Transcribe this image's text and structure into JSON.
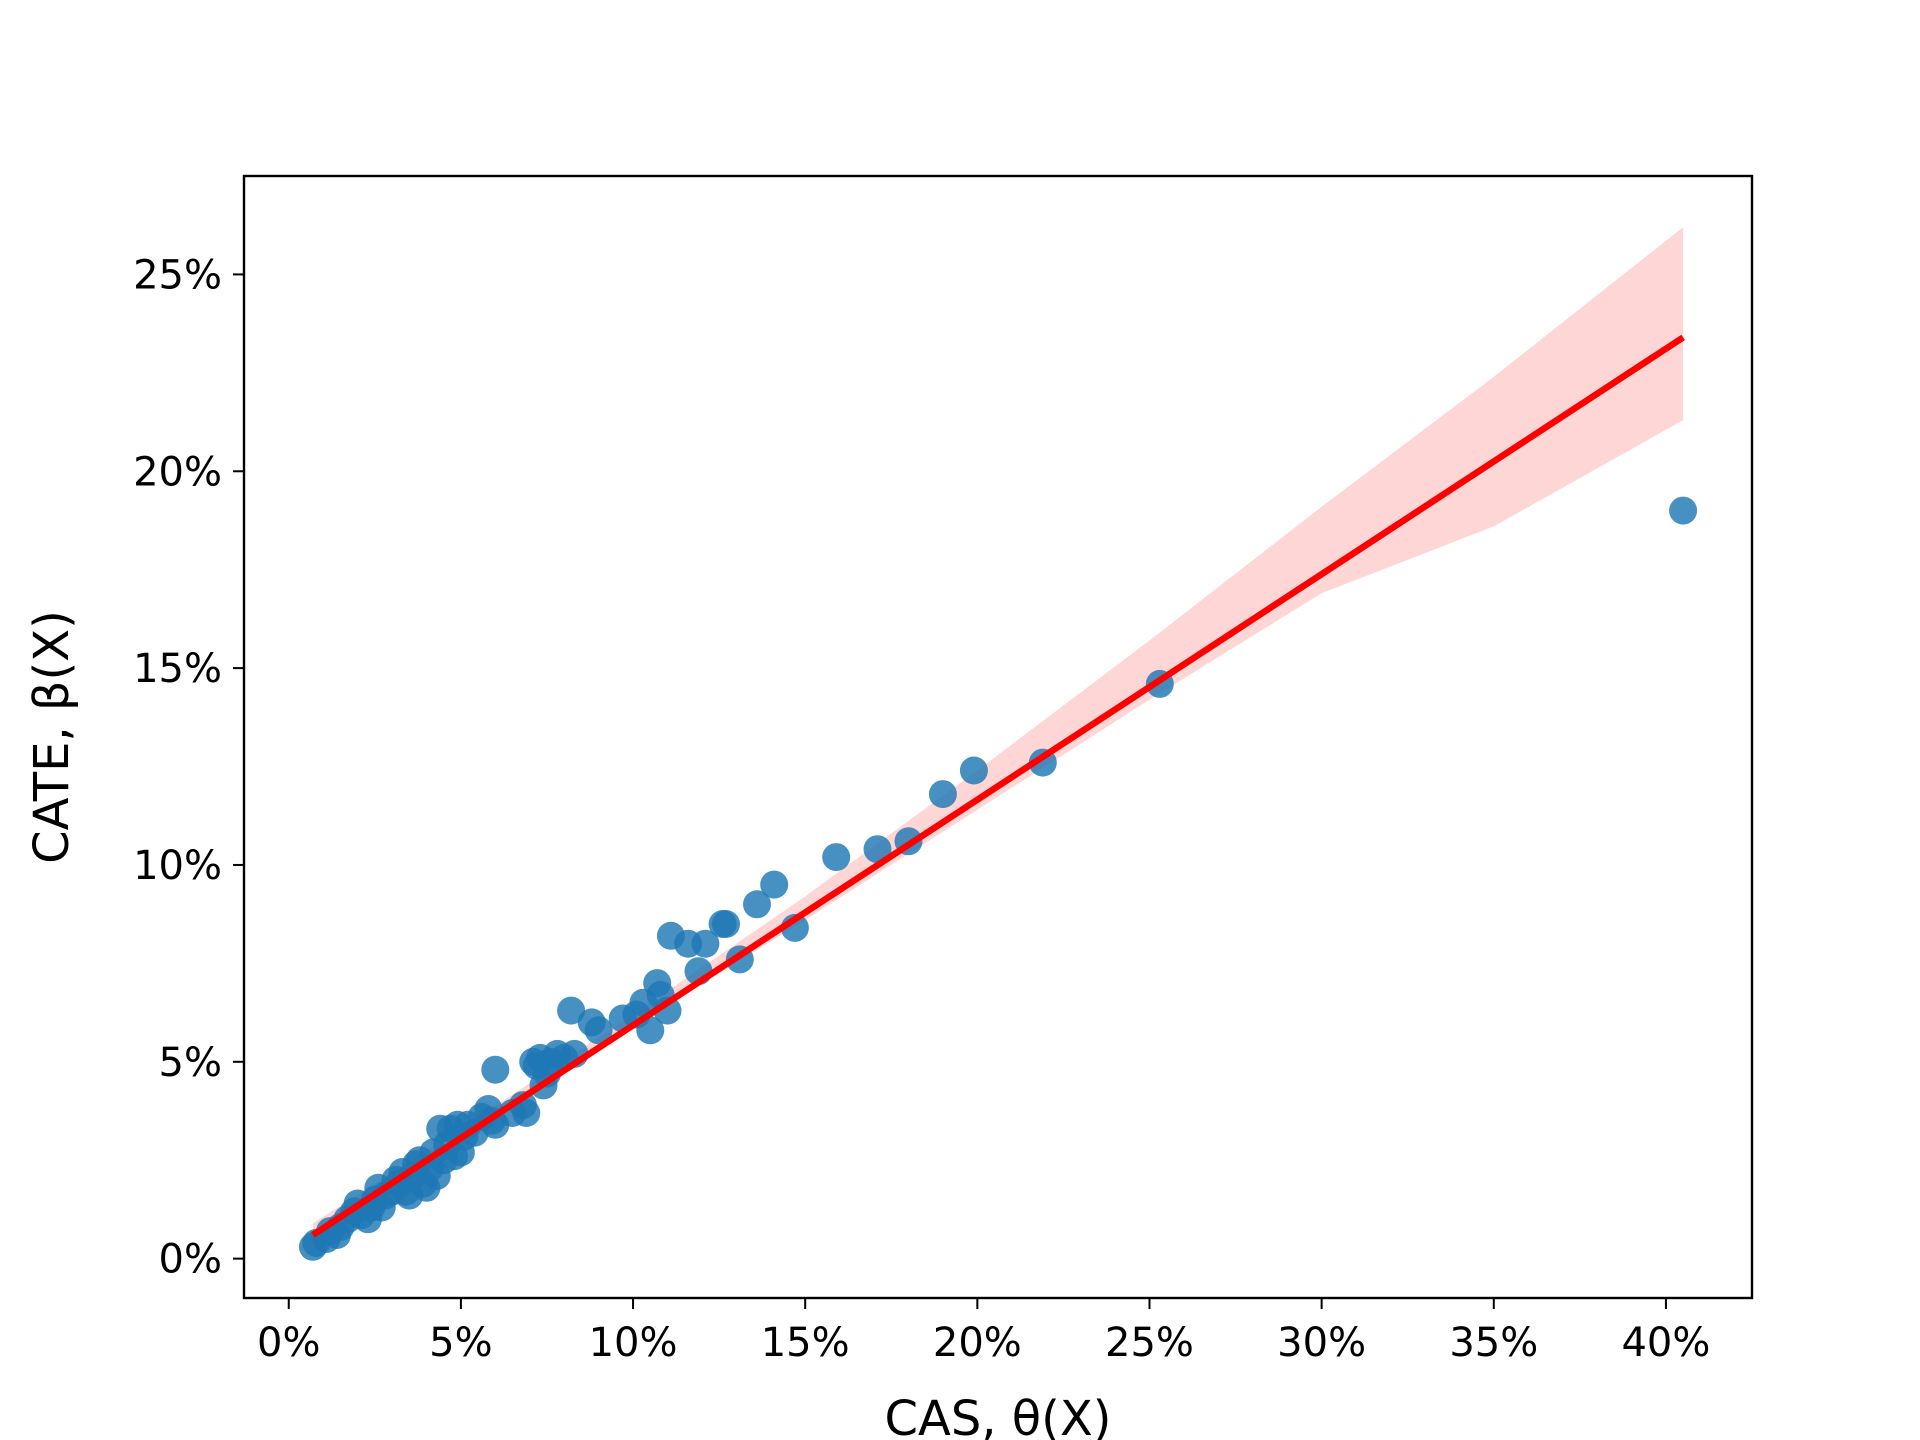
{
  "chart_data": {
    "type": "scatter",
    "xlabel": "CAS, θ(X)",
    "ylabel": "CATE, β(X)",
    "xlim": [
      -0.013,
      0.425
    ],
    "ylim": [
      -0.01,
      0.275
    ],
    "xticks": [
      0,
      0.05,
      0.1,
      0.15,
      0.2,
      0.25,
      0.3,
      0.35,
      0.4
    ],
    "xtick_labels": [
      "0%",
      "5%",
      "10%",
      "15%",
      "20%",
      "25%",
      "30%",
      "35%",
      "40%"
    ],
    "yticks": [
      0,
      0.05,
      0.1,
      0.15,
      0.2,
      0.25
    ],
    "ytick_labels": [
      "0%",
      "5%",
      "10%",
      "15%",
      "20%",
      "25%"
    ],
    "grid": false,
    "colors": {
      "points": "#1f77b4",
      "fit_line": "#ff0000",
      "ci_band": "#ffcccc"
    },
    "points": [
      [
        0.007,
        0.003
      ],
      [
        0.008,
        0.004
      ],
      [
        0.011,
        0.005
      ],
      [
        0.012,
        0.007
      ],
      [
        0.014,
        0.006
      ],
      [
        0.015,
        0.008
      ],
      [
        0.017,
        0.01
      ],
      [
        0.019,
        0.012
      ],
      [
        0.02,
        0.014
      ],
      [
        0.021,
        0.011
      ],
      [
        0.023,
        0.01
      ],
      [
        0.024,
        0.013
      ],
      [
        0.025,
        0.015
      ],
      [
        0.026,
        0.018
      ],
      [
        0.027,
        0.013
      ],
      [
        0.028,
        0.016
      ],
      [
        0.03,
        0.017
      ],
      [
        0.031,
        0.02
      ],
      [
        0.032,
        0.019
      ],
      [
        0.033,
        0.022
      ],
      [
        0.034,
        0.017
      ],
      [
        0.035,
        0.016
      ],
      [
        0.036,
        0.021
      ],
      [
        0.037,
        0.024
      ],
      [
        0.038,
        0.025
      ],
      [
        0.039,
        0.019
      ],
      [
        0.04,
        0.018
      ],
      [
        0.041,
        0.023
      ],
      [
        0.042,
        0.027
      ],
      [
        0.043,
        0.021
      ],
      [
        0.044,
        0.033
      ],
      [
        0.045,
        0.025
      ],
      [
        0.046,
        0.029
      ],
      [
        0.047,
        0.033
      ],
      [
        0.048,
        0.026
      ],
      [
        0.049,
        0.034
      ],
      [
        0.05,
        0.027
      ],
      [
        0.051,
        0.031
      ],
      [
        0.052,
        0.034
      ],
      [
        0.054,
        0.032
      ],
      [
        0.056,
        0.036
      ],
      [
        0.058,
        0.038
      ],
      [
        0.059,
        0.035
      ],
      [
        0.06,
        0.034
      ],
      [
        0.06,
        0.048
      ],
      [
        0.065,
        0.037
      ],
      [
        0.068,
        0.039
      ],
      [
        0.069,
        0.037
      ],
      [
        0.071,
        0.05
      ],
      [
        0.072,
        0.049
      ],
      [
        0.073,
        0.051
      ],
      [
        0.074,
        0.044
      ],
      [
        0.075,
        0.047
      ],
      [
        0.076,
        0.05
      ],
      [
        0.078,
        0.052
      ],
      [
        0.08,
        0.051
      ],
      [
        0.082,
        0.063
      ],
      [
        0.083,
        0.052
      ],
      [
        0.088,
        0.06
      ],
      [
        0.09,
        0.058
      ],
      [
        0.097,
        0.061
      ],
      [
        0.101,
        0.062
      ],
      [
        0.103,
        0.065
      ],
      [
        0.105,
        0.058
      ],
      [
        0.107,
        0.07
      ],
      [
        0.108,
        0.067
      ],
      [
        0.11,
        0.063
      ],
      [
        0.111,
        0.082
      ],
      [
        0.116,
        0.08
      ],
      [
        0.119,
        0.073
      ],
      [
        0.121,
        0.08
      ],
      [
        0.126,
        0.085
      ],
      [
        0.127,
        0.085
      ],
      [
        0.131,
        0.076
      ],
      [
        0.136,
        0.09
      ],
      [
        0.141,
        0.095
      ],
      [
        0.147,
        0.084
      ],
      [
        0.159,
        0.102
      ],
      [
        0.171,
        0.104
      ],
      [
        0.18,
        0.106
      ],
      [
        0.19,
        0.118
      ],
      [
        0.199,
        0.124
      ],
      [
        0.219,
        0.126
      ],
      [
        0.253,
        0.146
      ],
      [
        0.405,
        0.19
      ]
    ],
    "fit_line": {
      "x": [
        0.007,
        0.405
      ],
      "y": [
        0.006,
        0.234
      ]
    },
    "ci_band": {
      "x": [
        0.007,
        0.05,
        0.1,
        0.15,
        0.2,
        0.25,
        0.3,
        0.35,
        0.405
      ],
      "lower": [
        0.003,
        0.029,
        0.059,
        0.086,
        0.114,
        0.142,
        0.169,
        0.186,
        0.213
      ],
      "upper": [
        0.009,
        0.033,
        0.062,
        0.092,
        0.124,
        0.157,
        0.191,
        0.224,
        0.262
      ]
    }
  }
}
